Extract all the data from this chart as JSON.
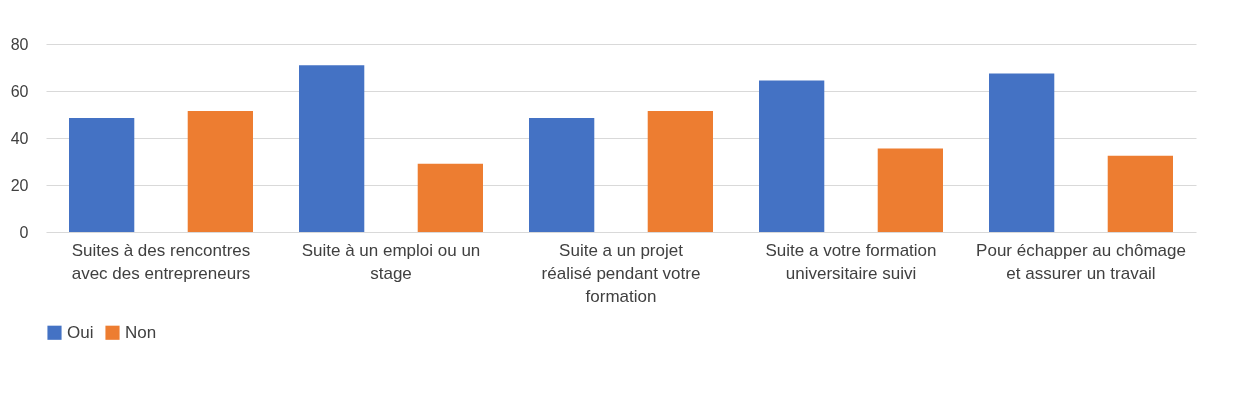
{
  "chart_data": {
    "type": "bar",
    "categories": [
      "Suites à des rencontres avec des entrepreneurs",
      "Suite à un emploi ou un stage",
      "Suite a un projet réalisé pendant votre formation",
      "Suite a votre formation universitaire suivi",
      "Pour échapper au chômage et assurer un travail"
    ],
    "series": [
      {
        "name": "Oui",
        "color": "#4472c4",
        "values": [
          48.5,
          71,
          48.5,
          64.5,
          67.5
        ]
      },
      {
        "name": "Non",
        "color": "#ed7d31",
        "values": [
          51.5,
          29,
          51.5,
          35.5,
          32.5
        ]
      }
    ],
    "ylim": [
      0,
      80
    ],
    "yticks": [
      0,
      20,
      40,
      60,
      80
    ],
    "grid": "y",
    "legend": "bottom"
  }
}
